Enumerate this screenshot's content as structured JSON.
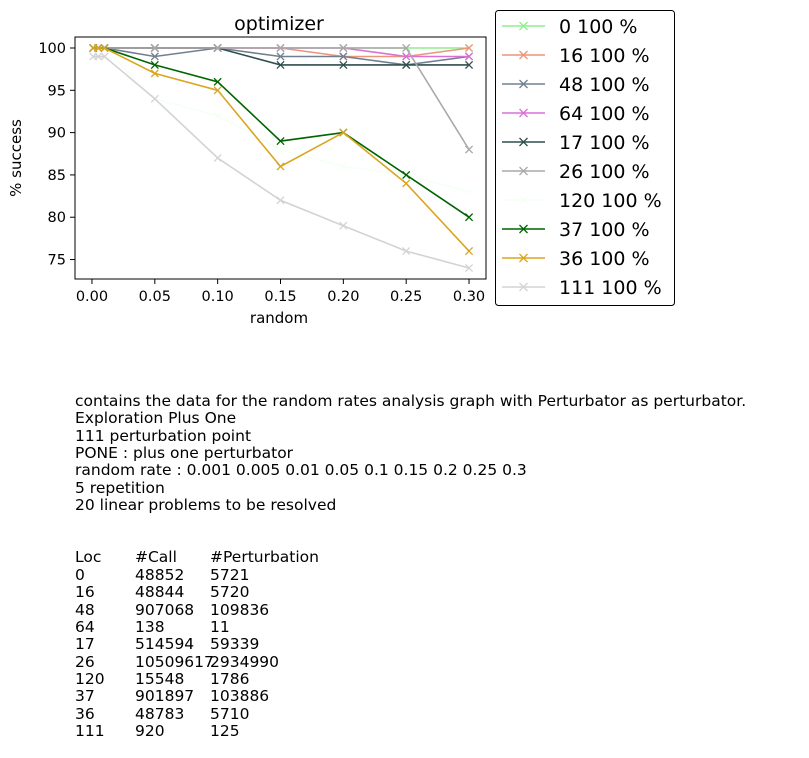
{
  "chart_data": {
    "type": "line",
    "title": "optimizer",
    "xlabel": "random",
    "ylabel": "% success",
    "x": [
      0.001,
      0.005,
      0.01,
      0.05,
      0.1,
      0.15,
      0.2,
      0.25,
      0.3
    ],
    "xlim": [
      -0.0135,
      0.3135
    ],
    "ylim": [
      72.7,
      101.3
    ],
    "xticks": [
      "0.00",
      "0.05",
      "0.10",
      "0.15",
      "0.20",
      "0.25",
      "0.30"
    ],
    "xtick_values": [
      0,
      0.05,
      0.1,
      0.15,
      0.2,
      0.25,
      0.3
    ],
    "yticks": [
      "75",
      "80",
      "85",
      "90",
      "95",
      "100"
    ],
    "ytick_values": [
      75,
      80,
      85,
      90,
      95,
      100
    ],
    "grid": false,
    "legend_position": "outside-right",
    "series": [
      {
        "name": "0 100 %",
        "color": "#90ee90",
        "values": [
          100,
          100,
          100,
          100,
          100,
          100,
          100,
          100,
          100
        ]
      },
      {
        "name": "16 100 %",
        "color": "#e9967a",
        "values": [
          100,
          100,
          100,
          100,
          100,
          100,
          99,
          99,
          100
        ]
      },
      {
        "name": "48 100 %",
        "color": "#708090",
        "values": [
          100,
          100,
          100,
          99,
          100,
          99,
          99,
          98,
          99
        ]
      },
      {
        "name": "64 100 %",
        "color": "#da70d6",
        "values": [
          100,
          100,
          100,
          100,
          100,
          100,
          100,
          99,
          99
        ]
      },
      {
        "name": "17 100 %",
        "color": "#2f4f4f",
        "values": [
          100,
          100,
          100,
          100,
          100,
          98,
          98,
          98,
          98
        ]
      },
      {
        "name": "26 100 %",
        "color": "#a9a9a9",
        "values": [
          100,
          100,
          100,
          100,
          100,
          100,
          100,
          100,
          88
        ]
      },
      {
        "name": "120 100 %",
        "color": "#f5fff5",
        "values": [
          100,
          100,
          100,
          94,
          92,
          88,
          86,
          85,
          83
        ]
      },
      {
        "name": "37 100 %",
        "color": "#006400",
        "values": [
          100,
          100,
          100,
          98,
          96,
          89,
          90,
          85,
          80
        ]
      },
      {
        "name": "36 100 %",
        "color": "#daa520",
        "values": [
          100,
          100,
          100,
          97,
          95,
          86,
          90,
          84,
          76
        ]
      },
      {
        "name": "111 100 %",
        "color": "#d3d3d3",
        "values": [
          99,
          99,
          99,
          94,
          87,
          82,
          79,
          76,
          74
        ]
      }
    ]
  },
  "caption": {
    "lines": [
      "contains the data for the random rates analysis graph with Perturbator as perturbator.",
      "Exploration Plus One",
      "111 perturbation point",
      "PONE : plus one perturbator",
      "random rate : 0.001 0.005 0.01 0.05 0.1 0.15 0.2 0.25 0.3",
      "5 repetition",
      "20 linear problems to be resolved"
    ],
    "table_header": [
      "Loc",
      "#Call",
      "#Perturbation"
    ],
    "table_rows": [
      [
        "0",
        "48852",
        "5721"
      ],
      [
        "16",
        "48844",
        "5720"
      ],
      [
        "48",
        "907068",
        "109836"
      ],
      [
        "64",
        "138",
        "11"
      ],
      [
        "17",
        "514594",
        "59339"
      ],
      [
        "26",
        "10509617",
        "2934990"
      ],
      [
        "120",
        "15548",
        "1786"
      ],
      [
        "37",
        "901897",
        "103886"
      ],
      [
        "36",
        "48783",
        "5710"
      ],
      [
        "111",
        "920",
        "125"
      ]
    ]
  }
}
